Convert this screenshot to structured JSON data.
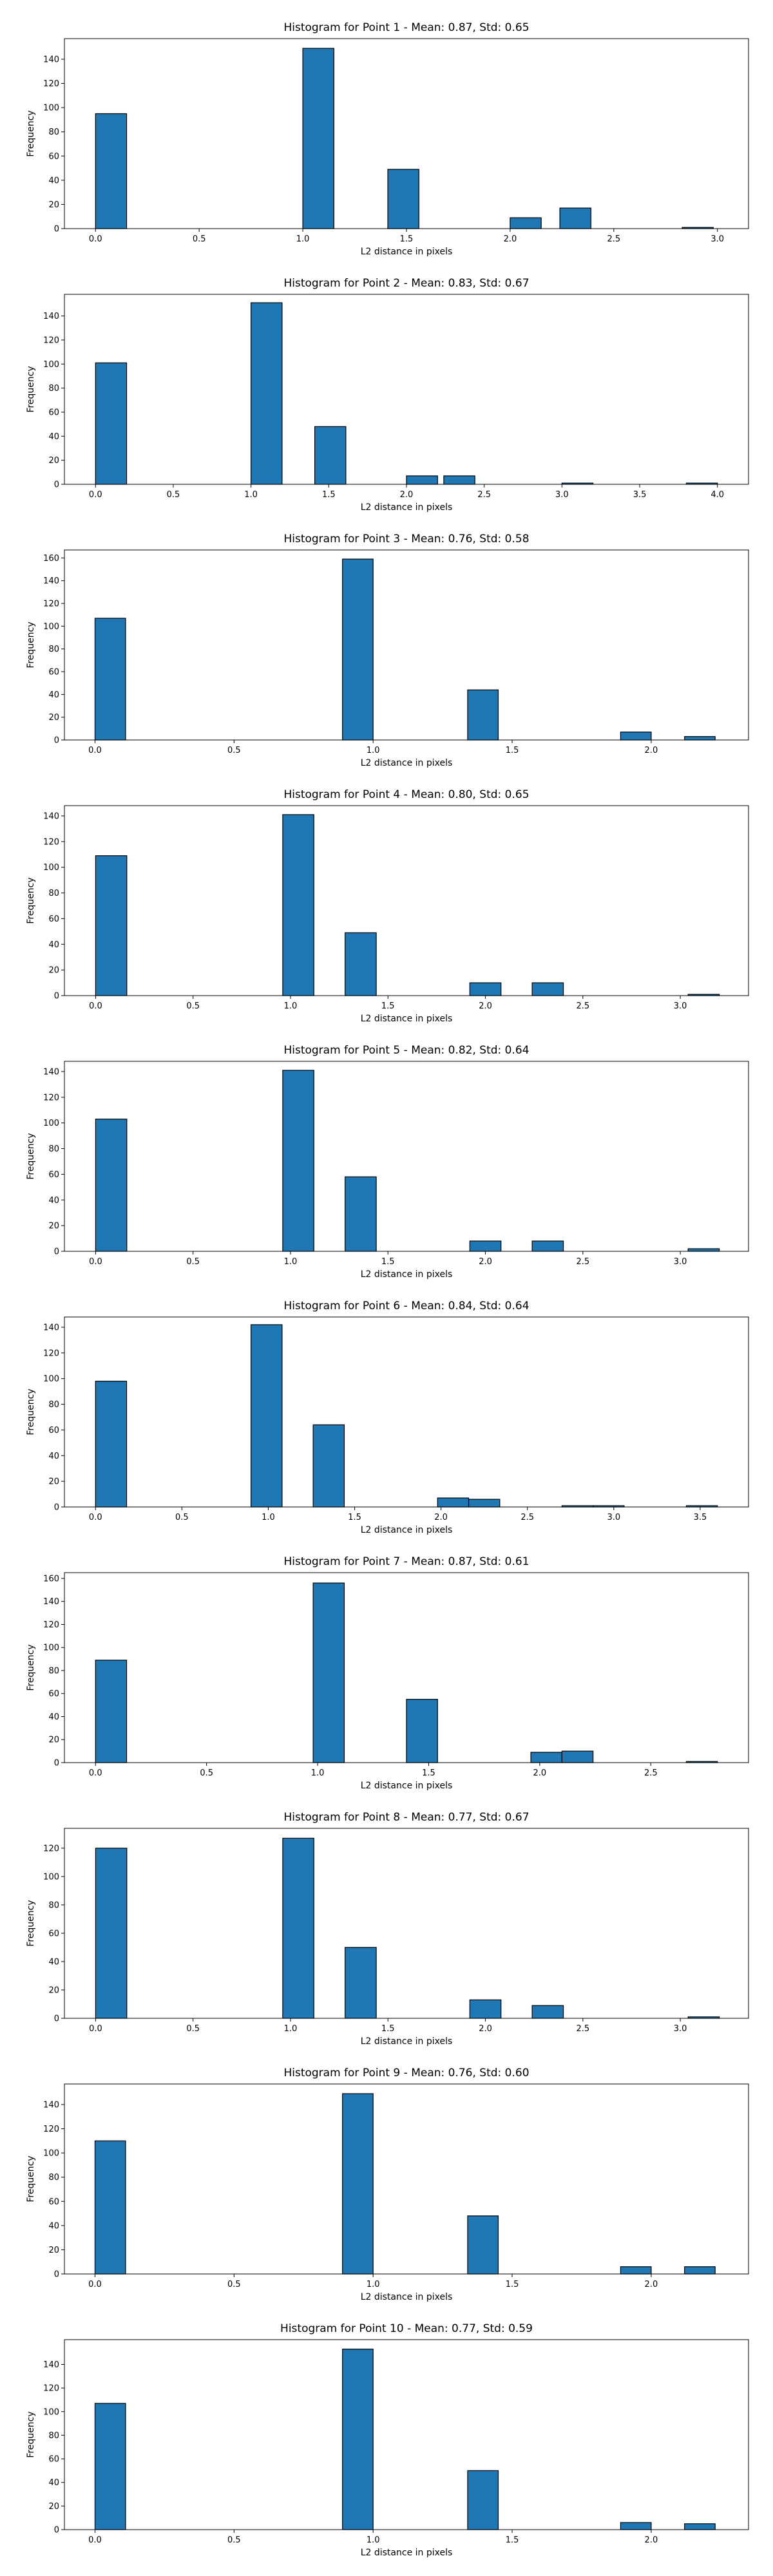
{
  "colors": {
    "bar_fill": "#1f77b4",
    "bar_edge": "#000000"
  },
  "chart_data": [
    {
      "type": "bar",
      "title": "Histogram for Point 1 - Mean: 0.87, Std: 0.65",
      "xlabel": "L2 distance in pixels",
      "ylabel": "Frequency",
      "bin_width": 0.15,
      "xlim": [
        -0.15,
        3.15
      ],
      "ylim": [
        0,
        157
      ],
      "xticks": [
        "0.0",
        "0.5",
        "1.0",
        "1.5",
        "2.0",
        "2.5",
        "3.0"
      ],
      "yticks": [
        "0",
        "20",
        "40",
        "60",
        "80",
        "100",
        "120",
        "140"
      ],
      "bins": [
        {
          "x": 0.0,
          "value": 95
        },
        {
          "x": 1.0,
          "value": 149
        },
        {
          "x": 1.41,
          "value": 49
        },
        {
          "x": 2.0,
          "value": 9
        },
        {
          "x": 2.24,
          "value": 17
        },
        {
          "x": 2.83,
          "value": 1
        }
      ]
    },
    {
      "type": "bar",
      "title": "Histogram for Point 2 - Mean: 0.83, Std: 0.67",
      "xlabel": "L2 distance in pixels",
      "ylabel": "Frequency",
      "bin_width": 0.2,
      "xlim": [
        -0.2,
        4.2
      ],
      "ylim": [
        0,
        158
      ],
      "xticks": [
        "0.0",
        "0.5",
        "1.0",
        "1.5",
        "2.0",
        "2.5",
        "3.0",
        "3.5",
        "4.0"
      ],
      "yticks": [
        "0",
        "20",
        "40",
        "60",
        "80",
        "100",
        "120",
        "140"
      ],
      "bins": [
        {
          "x": 0.0,
          "value": 101
        },
        {
          "x": 1.0,
          "value": 151
        },
        {
          "x": 1.41,
          "value": 48
        },
        {
          "x": 2.0,
          "value": 7
        },
        {
          "x": 2.24,
          "value": 7
        },
        {
          "x": 3.0,
          "value": 1
        },
        {
          "x": 3.8,
          "value": 1
        }
      ]
    },
    {
      "type": "bar",
      "title": "Histogram for Point 3 - Mean: 0.76, Std: 0.58",
      "xlabel": "L2 distance in pixels",
      "ylabel": "Frequency",
      "bin_width": 0.11,
      "xlim": [
        -0.11,
        2.35
      ],
      "ylim": [
        0,
        167
      ],
      "xticks": [
        "0.0",
        "0.5",
        "1.0",
        "1.5",
        "2.0"
      ],
      "yticks": [
        "0",
        "20",
        "40",
        "60",
        "80",
        "100",
        "120",
        "140",
        "160"
      ],
      "bins": [
        {
          "x": 0.0,
          "value": 107
        },
        {
          "x": 0.89,
          "value": 159
        },
        {
          "x": 1.34,
          "value": 44
        },
        {
          "x": 1.89,
          "value": 7
        },
        {
          "x": 2.12,
          "value": 3
        }
      ]
    },
    {
      "type": "bar",
      "title": "Histogram for Point 4 - Mean: 0.80, Std: 0.65",
      "xlabel": "L2 distance in pixels",
      "ylabel": "Frequency",
      "bin_width": 0.16,
      "xlim": [
        -0.16,
        3.35
      ],
      "ylim": [
        0,
        148
      ],
      "xticks": [
        "0.0",
        "0.5",
        "1.0",
        "1.5",
        "2.0",
        "2.5",
        "3.0"
      ],
      "yticks": [
        "0",
        "20",
        "40",
        "60",
        "80",
        "100",
        "120",
        "140"
      ],
      "bins": [
        {
          "x": 0.0,
          "value": 109
        },
        {
          "x": 0.96,
          "value": 141
        },
        {
          "x": 1.28,
          "value": 49
        },
        {
          "x": 1.92,
          "value": 10
        },
        {
          "x": 2.24,
          "value": 10
        },
        {
          "x": 3.04,
          "value": 1
        }
      ]
    },
    {
      "type": "bar",
      "title": "Histogram for Point 5 - Mean: 0.82, Std: 0.64",
      "xlabel": "L2 distance in pixels",
      "ylabel": "Frequency",
      "bin_width": 0.16,
      "xlim": [
        -0.16,
        3.35
      ],
      "ylim": [
        0,
        148
      ],
      "xticks": [
        "0.0",
        "0.5",
        "1.0",
        "1.5",
        "2.0",
        "2.5",
        "3.0"
      ],
      "yticks": [
        "0",
        "20",
        "40",
        "60",
        "80",
        "100",
        "120",
        "140"
      ],
      "bins": [
        {
          "x": 0.0,
          "value": 103
        },
        {
          "x": 0.96,
          "value": 141
        },
        {
          "x": 1.28,
          "value": 58
        },
        {
          "x": 1.92,
          "value": 8
        },
        {
          "x": 2.24,
          "value": 8
        },
        {
          "x": 3.04,
          "value": 2
        }
      ]
    },
    {
      "type": "bar",
      "title": "Histogram for Point 6 - Mean: 0.84, Std: 0.64",
      "xlabel": "L2 distance in pixels",
      "ylabel": "Frequency",
      "bin_width": 0.18,
      "xlim": [
        -0.18,
        3.78
      ],
      "ylim": [
        0,
        148
      ],
      "xticks": [
        "0.0",
        "0.5",
        "1.0",
        "1.5",
        "2.0",
        "2.5",
        "3.0",
        "3.5"
      ],
      "yticks": [
        "0",
        "20",
        "40",
        "60",
        "80",
        "100",
        "120",
        "140"
      ],
      "bins": [
        {
          "x": 0.0,
          "value": 98
        },
        {
          "x": 0.9,
          "value": 142
        },
        {
          "x": 1.26,
          "value": 64
        },
        {
          "x": 1.98,
          "value": 7
        },
        {
          "x": 2.16,
          "value": 6
        },
        {
          "x": 2.7,
          "value": 1
        },
        {
          "x": 2.88,
          "value": 1
        },
        {
          "x": 3.42,
          "value": 1
        }
      ]
    },
    {
      "type": "bar",
      "title": "Histogram for Point 7 - Mean: 0.87, Std: 0.61",
      "xlabel": "L2 distance in pixels",
      "ylabel": "Frequency",
      "bin_width": 0.14,
      "xlim": [
        -0.14,
        2.94
      ],
      "ylim": [
        0,
        165
      ],
      "xticks": [
        "0.0",
        "0.5",
        "1.0",
        "1.5",
        "2.0",
        "2.5"
      ],
      "yticks": [
        "0",
        "20",
        "40",
        "60",
        "80",
        "100",
        "120",
        "140",
        "160"
      ],
      "bins": [
        {
          "x": 0.0,
          "value": 89
        },
        {
          "x": 0.98,
          "value": 156
        },
        {
          "x": 1.4,
          "value": 55
        },
        {
          "x": 1.96,
          "value": 9
        },
        {
          "x": 2.1,
          "value": 10
        },
        {
          "x": 2.66,
          "value": 1
        }
      ]
    },
    {
      "type": "bar",
      "title": "Histogram for Point 8 - Mean: 0.77, Std: 0.67",
      "xlabel": "L2 distance in pixels",
      "ylabel": "Frequency",
      "bin_width": 0.16,
      "xlim": [
        -0.16,
        3.35
      ],
      "ylim": [
        0,
        134
      ],
      "xticks": [
        "0.0",
        "0.5",
        "1.0",
        "1.5",
        "2.0",
        "2.5",
        "3.0"
      ],
      "yticks": [
        "0",
        "20",
        "40",
        "60",
        "80",
        "100",
        "120"
      ],
      "bins": [
        {
          "x": 0.0,
          "value": 120
        },
        {
          "x": 0.96,
          "value": 127
        },
        {
          "x": 1.28,
          "value": 50
        },
        {
          "x": 1.92,
          "value": 13
        },
        {
          "x": 2.24,
          "value": 9
        },
        {
          "x": 3.04,
          "value": 1
        }
      ]
    },
    {
      "type": "bar",
      "title": "Histogram for Point 9 - Mean: 0.76, Std: 0.60",
      "xlabel": "L2 distance in pixels",
      "ylabel": "Frequency",
      "bin_width": 0.11,
      "xlim": [
        -0.11,
        2.35
      ],
      "ylim": [
        0,
        157
      ],
      "xticks": [
        "0.0",
        "0.5",
        "1.0",
        "1.5",
        "2.0"
      ],
      "yticks": [
        "0",
        "20",
        "40",
        "60",
        "80",
        "100",
        "120",
        "140"
      ],
      "bins": [
        {
          "x": 0.0,
          "value": 110
        },
        {
          "x": 0.89,
          "value": 149
        },
        {
          "x": 1.34,
          "value": 48
        },
        {
          "x": 1.89,
          "value": 6
        },
        {
          "x": 2.12,
          "value": 6
        }
      ]
    },
    {
      "type": "bar",
      "title": "Histogram for Point 10 - Mean: 0.77, Std: 0.59",
      "xlabel": "L2 distance in pixels",
      "ylabel": "Frequency",
      "bin_width": 0.11,
      "xlim": [
        -0.11,
        2.35
      ],
      "ylim": [
        0,
        161
      ],
      "xticks": [
        "0.0",
        "0.5",
        "1.0",
        "1.5",
        "2.0"
      ],
      "yticks": [
        "0",
        "20",
        "40",
        "60",
        "80",
        "100",
        "120",
        "140"
      ],
      "bins": [
        {
          "x": 0.0,
          "value": 107
        },
        {
          "x": 0.89,
          "value": 153
        },
        {
          "x": 1.34,
          "value": 50
        },
        {
          "x": 1.89,
          "value": 6
        },
        {
          "x": 2.12,
          "value": 5
        }
      ]
    }
  ]
}
